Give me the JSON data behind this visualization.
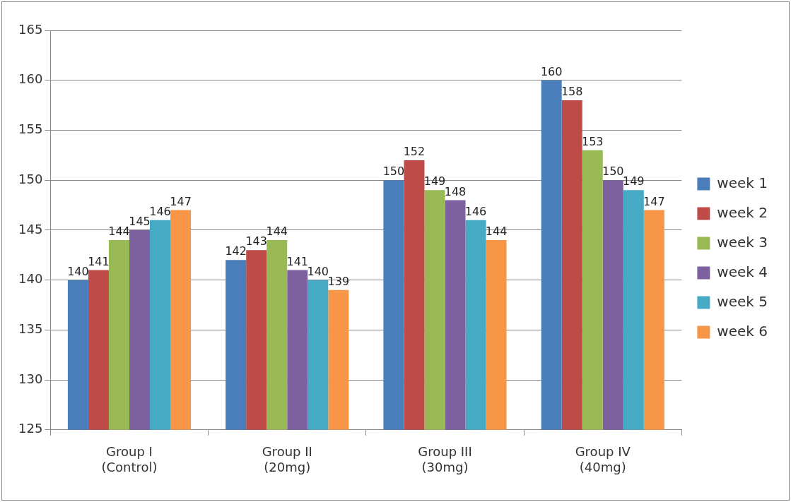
{
  "chart_data": {
    "type": "bar",
    "categories": [
      "Group I\n(Control)",
      "Group II\n(20mg)",
      "Group III\n(30mg)",
      "Group IV\n(40mg)"
    ],
    "series": [
      {
        "name": "week 1",
        "color": "#4a7ebb",
        "values": [
          140,
          142,
          150,
          160
        ]
      },
      {
        "name": "week 2",
        "color": "#be4b48",
        "values": [
          141,
          143,
          152,
          158
        ]
      },
      {
        "name": "week 3",
        "color": "#98b954",
        "values": [
          144,
          144,
          149,
          153
        ]
      },
      {
        "name": "week 4",
        "color": "#7d60a0",
        "values": [
          145,
          141,
          148,
          150
        ]
      },
      {
        "name": "week 5",
        "color": "#46aac5",
        "values": [
          146,
          140,
          146,
          149
        ]
      },
      {
        "name": "week 6",
        "color": "#f79646",
        "values": [
          147,
          139,
          144,
          147
        ]
      }
    ],
    "ylim": [
      125,
      165
    ],
    "yticks": [
      125,
      130,
      135,
      140,
      145,
      150,
      155,
      160,
      165
    ],
    "grid": "y",
    "legend": "right",
    "data_labels": true
  }
}
